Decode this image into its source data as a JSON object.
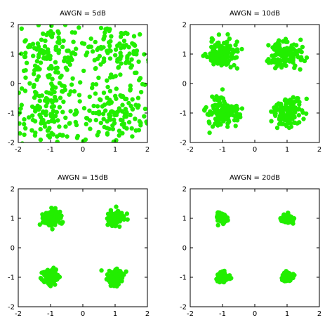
{
  "chart_data": [
    {
      "type": "scatter",
      "title": "AWGN = 5dB",
      "snr_db": 5,
      "xlim": [
        -2,
        2
      ],
      "ylim": [
        -2,
        2
      ],
      "xticks": [
        -2,
        -1,
        0,
        1,
        2
      ],
      "yticks": [
        -2,
        -1,
        0,
        1,
        2
      ],
      "grid": false,
      "color": "#22ee00",
      "constellation_points": [
        [
          -1,
          1
        ],
        [
          1,
          1
        ],
        [
          -1,
          -1
        ],
        [
          1,
          -1
        ]
      ],
      "points_per_symbol": 125,
      "noise_sigma": 0.56
    },
    {
      "type": "scatter",
      "title": "AWGN = 10dB",
      "snr_db": 10,
      "xlim": [
        -2,
        2
      ],
      "ylim": [
        -2,
        2
      ],
      "xticks": [
        -2,
        -1,
        0,
        1,
        2
      ],
      "yticks": [
        -2,
        -1,
        0,
        1,
        2
      ],
      "grid": false,
      "color": "#22ee00",
      "constellation_points": [
        [
          -1,
          1
        ],
        [
          1,
          1
        ],
        [
          -1,
          -1
        ],
        [
          1,
          -1
        ]
      ],
      "points_per_symbol": 125,
      "noise_sigma": 0.25
    },
    {
      "type": "scatter",
      "title": "AWGN = 15dB",
      "snr_db": 15,
      "xlim": [
        -2,
        2
      ],
      "ylim": [
        -2,
        2
      ],
      "xticks": [
        -2,
        -1,
        0,
        1,
        2
      ],
      "yticks": [
        -2,
        -1,
        0,
        1,
        2
      ],
      "grid": false,
      "color": "#22ee00",
      "constellation_points": [
        [
          -1,
          1
        ],
        [
          1,
          1
        ],
        [
          -1,
          -1
        ],
        [
          1,
          -1
        ]
      ],
      "points_per_symbol": 125,
      "noise_sigma": 0.13
    },
    {
      "type": "scatter",
      "title": "AWGN = 20dB",
      "snr_db": 20,
      "xlim": [
        -2,
        2
      ],
      "ylim": [
        -2,
        2
      ],
      "xticks": [
        -2,
        -1,
        0,
        1,
        2
      ],
      "yticks": [
        -2,
        -1,
        0,
        1,
        2
      ],
      "grid": false,
      "color": "#22ee00",
      "constellation_points": [
        [
          -1,
          1
        ],
        [
          1,
          1
        ],
        [
          -1,
          -1
        ],
        [
          1,
          -1
        ]
      ],
      "points_per_symbol": 125,
      "noise_sigma": 0.075
    }
  ]
}
